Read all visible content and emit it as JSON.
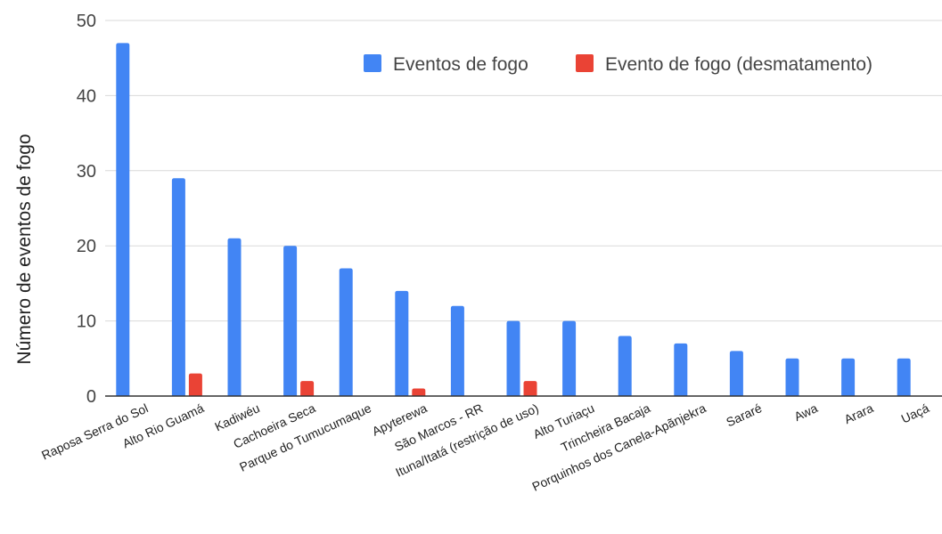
{
  "chart_data": {
    "type": "bar",
    "title": "",
    "xlabel": "",
    "ylabel": "Número de eventos de fogo",
    "ylim": [
      0,
      50
    ],
    "yticks": [
      0,
      10,
      20,
      30,
      40,
      50
    ],
    "grid": true,
    "legend_position": "top-right",
    "categories": [
      "Raposa Serra do Sol",
      "Alto Rio Guamá",
      "Kadiwéu",
      "Cachoeira Seca",
      "Parque do Tumucumaque",
      "Apyterewa",
      "São Marcos - RR",
      "Ituna/Itatá (restrição de uso)",
      "Alto Turiaçu",
      "Trincheira Bacaja",
      "Porquinhos dos Canela-Apãnjekra",
      "Sararé",
      "Awa",
      "Arara",
      "Uaçá"
    ],
    "series": [
      {
        "name": "Eventos de fogo",
        "color": "#4285f4",
        "values": [
          47,
          29,
          21,
          20,
          17,
          14,
          12,
          10,
          10,
          8,
          7,
          6,
          5,
          5,
          5
        ]
      },
      {
        "name": "Evento de fogo (desmatamento)",
        "color": "#ea4335",
        "values": [
          0,
          3,
          0,
          2,
          0,
          1,
          0,
          2,
          0,
          0,
          0,
          0,
          0,
          0,
          0
        ]
      }
    ]
  }
}
